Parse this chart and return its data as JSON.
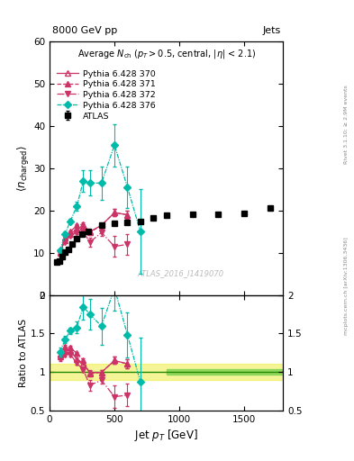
{
  "title_left": "8000 GeV pp",
  "title_right": "Jets",
  "subtitle": "Average N$_{ch}$ (p$_T$>0.5, central, |$\\eta$| < 2.1)",
  "xlabel": "Jet p$_T$ [GeV]",
  "ylabel_main": "$\\langle n_{charged} \\rangle$",
  "ylabel_ratio": "Ratio to ATLAS",
  "watermark": "ATLAS_2016_I1419070",
  "atlas_x": [
    55,
    75,
    95,
    115,
    145,
    175,
    210,
    250,
    300,
    400,
    500,
    600,
    700,
    800,
    900,
    1100,
    1300,
    1500,
    1700
  ],
  "atlas_y": [
    7.8,
    8.1,
    9.0,
    10.1,
    10.7,
    12.1,
    13.3,
    14.5,
    15.0,
    16.6,
    17.0,
    17.2,
    17.3,
    18.3,
    18.8,
    19.1,
    19.2,
    19.4,
    20.5
  ],
  "atlas_yerr": [
    0.2,
    0.2,
    0.2,
    0.2,
    0.2,
    0.2,
    0.2,
    0.2,
    0.2,
    0.2,
    0.2,
    0.2,
    0.2,
    0.2,
    0.2,
    0.2,
    0.2,
    0.2,
    0.2
  ],
  "p370_x": [
    80,
    120,
    160,
    210,
    260,
    310,
    400,
    500,
    600
  ],
  "p370_y": [
    10.0,
    13.0,
    14.5,
    15.5,
    16.2,
    15.0,
    16.5,
    19.5,
    19.0
  ],
  "p370_yerr": [
    0.3,
    0.3,
    0.3,
    0.3,
    0.3,
    0.5,
    0.5,
    0.8,
    1.0
  ],
  "p371_x": [
    80,
    120,
    160,
    210,
    260,
    310,
    400,
    500,
    600
  ],
  "p371_y": [
    10.2,
    13.5,
    15.0,
    16.5,
    16.8,
    14.8,
    16.5,
    19.5,
    19.0
  ],
  "p371_yerr": [
    0.3,
    0.3,
    0.3,
    0.3,
    0.3,
    0.5,
    0.5,
    0.8,
    1.0
  ],
  "p372_x": [
    80,
    120,
    160,
    210,
    260,
    310,
    400,
    500,
    600
  ],
  "p372_y": [
    9.8,
    12.5,
    14.0,
    14.8,
    15.0,
    12.5,
    14.8,
    11.5,
    12.0
  ],
  "p372_yerr": [
    0.3,
    0.3,
    0.3,
    0.3,
    0.4,
    1.0,
    0.8,
    2.5,
    2.5
  ],
  "p376_x": [
    80,
    120,
    160,
    210,
    260,
    310,
    400,
    500,
    600,
    700
  ],
  "p376_y": [
    10.5,
    14.5,
    17.5,
    21.0,
    27.0,
    26.5,
    26.5,
    35.5,
    25.5,
    15.0
  ],
  "p376_yerr": [
    0.5,
    0.5,
    0.5,
    1.0,
    2.5,
    3.0,
    4.0,
    5.0,
    5.0,
    10.0
  ],
  "color_pink": "#cc3366",
  "color_cyan": "#00bbaa",
  "ylim_main": [
    0,
    60
  ],
  "ylim_ratio": [
    0.5,
    2.0
  ],
  "xlim": [
    0,
    1800
  ],
  "yticks_main": [
    0,
    10,
    20,
    30,
    40,
    50,
    60
  ],
  "yticks_ratio": [
    0.5,
    1.0,
    1.5,
    2.0
  ],
  "xticks": [
    0,
    500,
    1000,
    1500
  ]
}
